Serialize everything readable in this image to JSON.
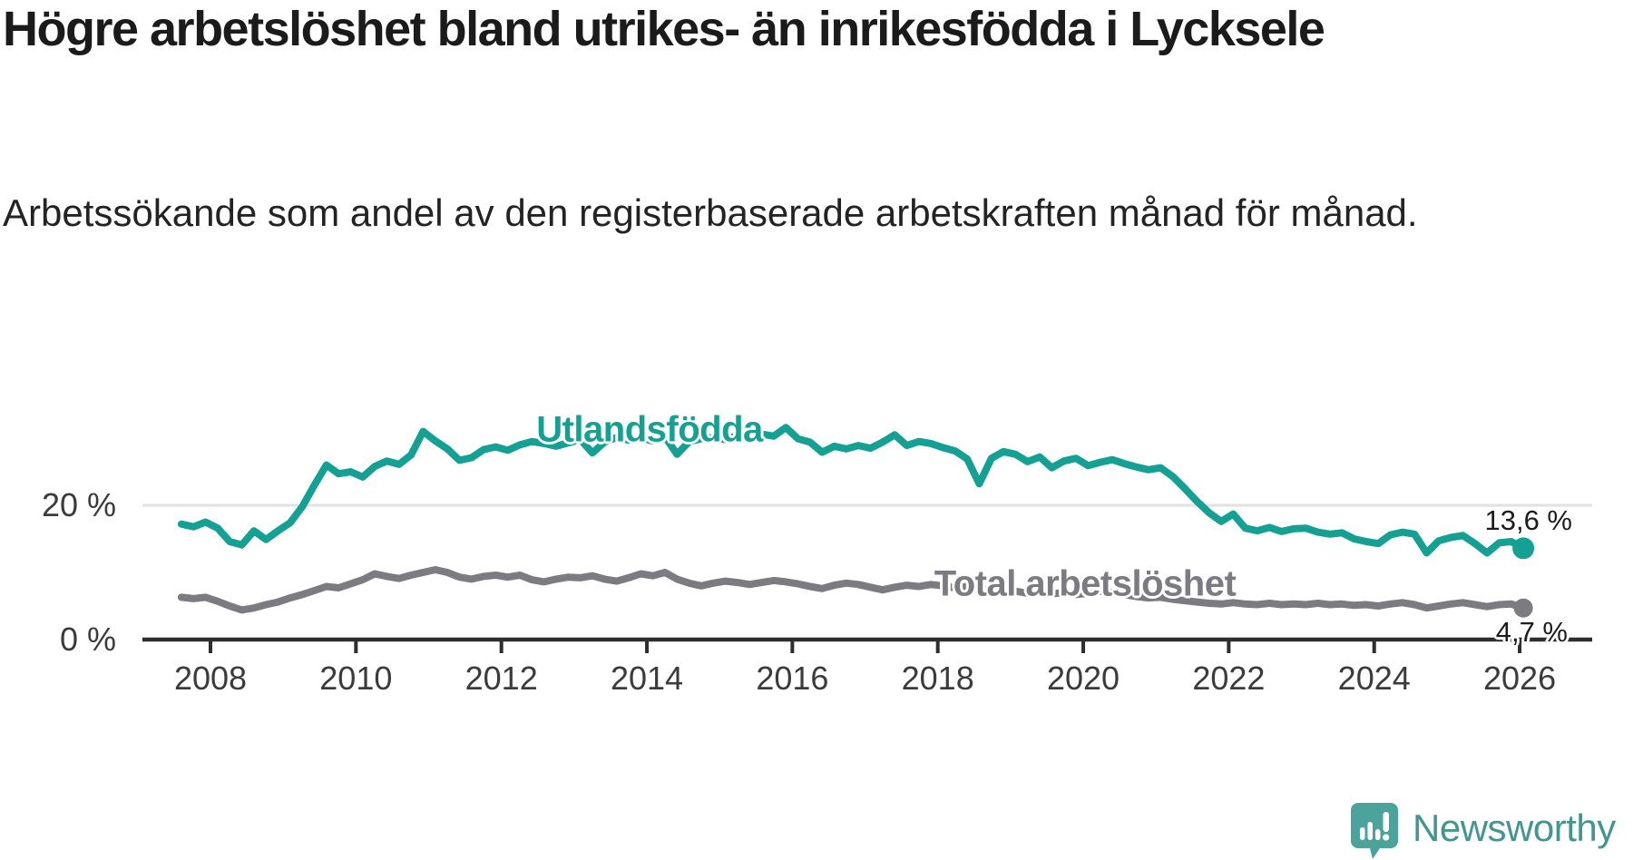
{
  "header": {
    "title": "Högre arbetslöshet bland utrikes- än inrikesfödda i Lycksele",
    "subtitle": "Arbetssökande som andel av den registerbaserade arbetskraften månad för månad."
  },
  "chart_data": {
    "type": "line",
    "title": "Högre arbetslöshet bland utrikes- än inrikesfödda i Lycksele",
    "ylabel": "Arbetssökande som andel av den registerbaserade arbetskraften",
    "grid": "horizontal line at 20 % only",
    "legend_position": "labels inline on lines",
    "x_start": 2007.6,
    "x_step_years": 0.16622,
    "x_axis": {
      "ticks": [
        {
          "label": "2008",
          "year": 2008
        },
        {
          "label": "2010",
          "year": 2010
        },
        {
          "label": "2012",
          "year": 2012
        },
        {
          "label": "2014",
          "year": 2014
        },
        {
          "label": "2016",
          "year": 2016
        },
        {
          "label": "2018",
          "year": 2018
        },
        {
          "label": "2020",
          "year": 2020
        },
        {
          "label": "2022",
          "year": 2022
        },
        {
          "label": "2024",
          "year": 2024
        },
        {
          "label": "2026",
          "year": 2026
        }
      ],
      "xlim": [
        2007.35,
        2026.95
      ]
    },
    "y_axis": {
      "ticks": [
        {
          "label": "20 %",
          "value": 20
        },
        {
          "label": "0 %",
          "value": 0
        }
      ],
      "ylim": [
        0,
        42
      ]
    },
    "series": [
      {
        "name": "Utlandsfödda",
        "color": "#14A093",
        "end_label": "13,6 %",
        "end_value": 13.6,
        "values": [
          17.2,
          16.8,
          17.5,
          16.6,
          14.6,
          14.1,
          16.2,
          14.9,
          16.2,
          17.4,
          19.8,
          23.0,
          26.0,
          24.7,
          25.0,
          24.2,
          25.8,
          26.6,
          26.1,
          27.5,
          31.0,
          29.6,
          28.4,
          26.7,
          27.1,
          28.3,
          28.7,
          28.2,
          29.0,
          29.5,
          29.2,
          28.8,
          29.3,
          29.8,
          27.8,
          29.4,
          30.1,
          29.7,
          30.0,
          29.6,
          30.2,
          27.6,
          29.5,
          29.9,
          30.1,
          29.8,
          30.4,
          30.1,
          30.6,
          30.3,
          31.6,
          29.9,
          29.4,
          27.9,
          28.8,
          28.4,
          28.9,
          28.5,
          29.4,
          30.5,
          28.9,
          29.5,
          29.2,
          28.6,
          28.1,
          26.9,
          23.2,
          27.0,
          28.0,
          27.6,
          26.5,
          27.2,
          25.6,
          26.6,
          27.0,
          25.9,
          26.4,
          26.8,
          26.2,
          25.7,
          25.3,
          25.6,
          24.3,
          22.5,
          20.6,
          18.9,
          17.6,
          18.7,
          16.6,
          16.2,
          16.7,
          16.1,
          16.5,
          16.6,
          16.0,
          15.7,
          15.9,
          15.0,
          14.6,
          14.3,
          15.6,
          16.0,
          15.7,
          12.9,
          14.7,
          15.2,
          15.5,
          14.3,
          12.9,
          14.4,
          14.6,
          13.6
        ]
      },
      {
        "name": "Total arbetslöshet",
        "color": "#7B7B81",
        "end_label": "4,7 %",
        "end_value": 4.7,
        "values": [
          6.3,
          6.1,
          6.3,
          5.7,
          5.0,
          4.4,
          4.7,
          5.2,
          5.6,
          6.2,
          6.7,
          7.3,
          7.9,
          7.7,
          8.3,
          8.9,
          9.8,
          9.4,
          9.1,
          9.6,
          10.0,
          10.4,
          10.0,
          9.3,
          9.0,
          9.4,
          9.6,
          9.3,
          9.6,
          8.9,
          8.6,
          9.0,
          9.3,
          9.2,
          9.5,
          9.0,
          8.7,
          9.2,
          9.8,
          9.5,
          10.0,
          9.0,
          8.4,
          8.0,
          8.4,
          8.7,
          8.5,
          8.2,
          8.5,
          8.8,
          8.6,
          8.3,
          7.9,
          7.6,
          8.1,
          8.4,
          8.2,
          7.8,
          7.4,
          7.8,
          8.1,
          7.9,
          8.2,
          8.0,
          7.7,
          7.9,
          7.5,
          7.3,
          7.5,
          7.2,
          6.9,
          7.1,
          6.8,
          7.0,
          6.7,
          6.9,
          7.2,
          7.0,
          6.7,
          6.4,
          6.2,
          6.3,
          6.0,
          5.8,
          5.6,
          5.4,
          5.3,
          5.5,
          5.3,
          5.2,
          5.4,
          5.2,
          5.3,
          5.2,
          5.4,
          5.2,
          5.3,
          5.1,
          5.2,
          5.0,
          5.3,
          5.5,
          5.2,
          4.7,
          5.0,
          5.3,
          5.5,
          5.2,
          4.9,
          5.2,
          5.3,
          4.7
        ]
      }
    ]
  },
  "branding": {
    "logo_text": "Newsworthy",
    "logo_color": "#43958F",
    "icon_color": "#4BA39C",
    "icon_name": "newsworthy-speech-bubble-bar-chart-icon"
  }
}
